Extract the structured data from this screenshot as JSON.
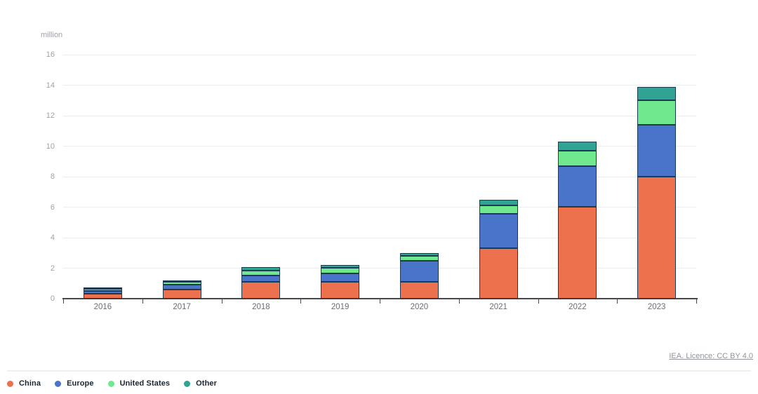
{
  "chart_data": {
    "type": "bar",
    "stacked": true,
    "title": "",
    "ylabel": "million",
    "categories": [
      "2016",
      "2017",
      "2018",
      "2019",
      "2020",
      "2021",
      "2022",
      "2023"
    ],
    "series": [
      {
        "name": "China",
        "color": "#ee714d",
        "values": [
          0.35,
          0.6,
          1.1,
          1.1,
          1.1,
          3.3,
          6.0,
          8.0
        ]
      },
      {
        "name": "Europe",
        "color": "#4a73ca",
        "values": [
          0.2,
          0.3,
          0.4,
          0.55,
          1.4,
          2.25,
          2.7,
          3.4
        ]
      },
      {
        "name": "United States",
        "color": "#70e98e",
        "values": [
          0.15,
          0.2,
          0.35,
          0.35,
          0.3,
          0.55,
          1.0,
          1.6
        ]
      },
      {
        "name": "Other",
        "color": "#2fa492",
        "values": [
          0.05,
          0.1,
          0.2,
          0.2,
          0.2,
          0.4,
          0.6,
          0.9
        ]
      }
    ],
    "totals": [
      0.75,
      1.2,
      2.05,
      2.2,
      3.0,
      6.5,
      10.3,
      13.9
    ],
    "ylim": [
      0,
      16
    ],
    "yticks": [
      0,
      2,
      4,
      6,
      8,
      10,
      12,
      14,
      16
    ],
    "grid": true,
    "legend_position": "bottom-left",
    "legend": [
      "China",
      "Europe",
      "United States",
      "Other"
    ]
  },
  "footer": {
    "licence_text": "IEA. Licence: CC BY 4.0"
  },
  "colors": {
    "china": "#ee714d",
    "europe": "#4a73ca",
    "united_states": "#70e98e",
    "other": "#2fa492",
    "bar_outline": "#1b3a54",
    "gridline": "#ededf0",
    "axis_line": "#45484e",
    "y_tick_label": "#9fa0a8",
    "x_tick_label": "#6a6e75",
    "legend_text": "#1a2732",
    "licence_link": "#8f949b",
    "background": "#ffffff"
  }
}
